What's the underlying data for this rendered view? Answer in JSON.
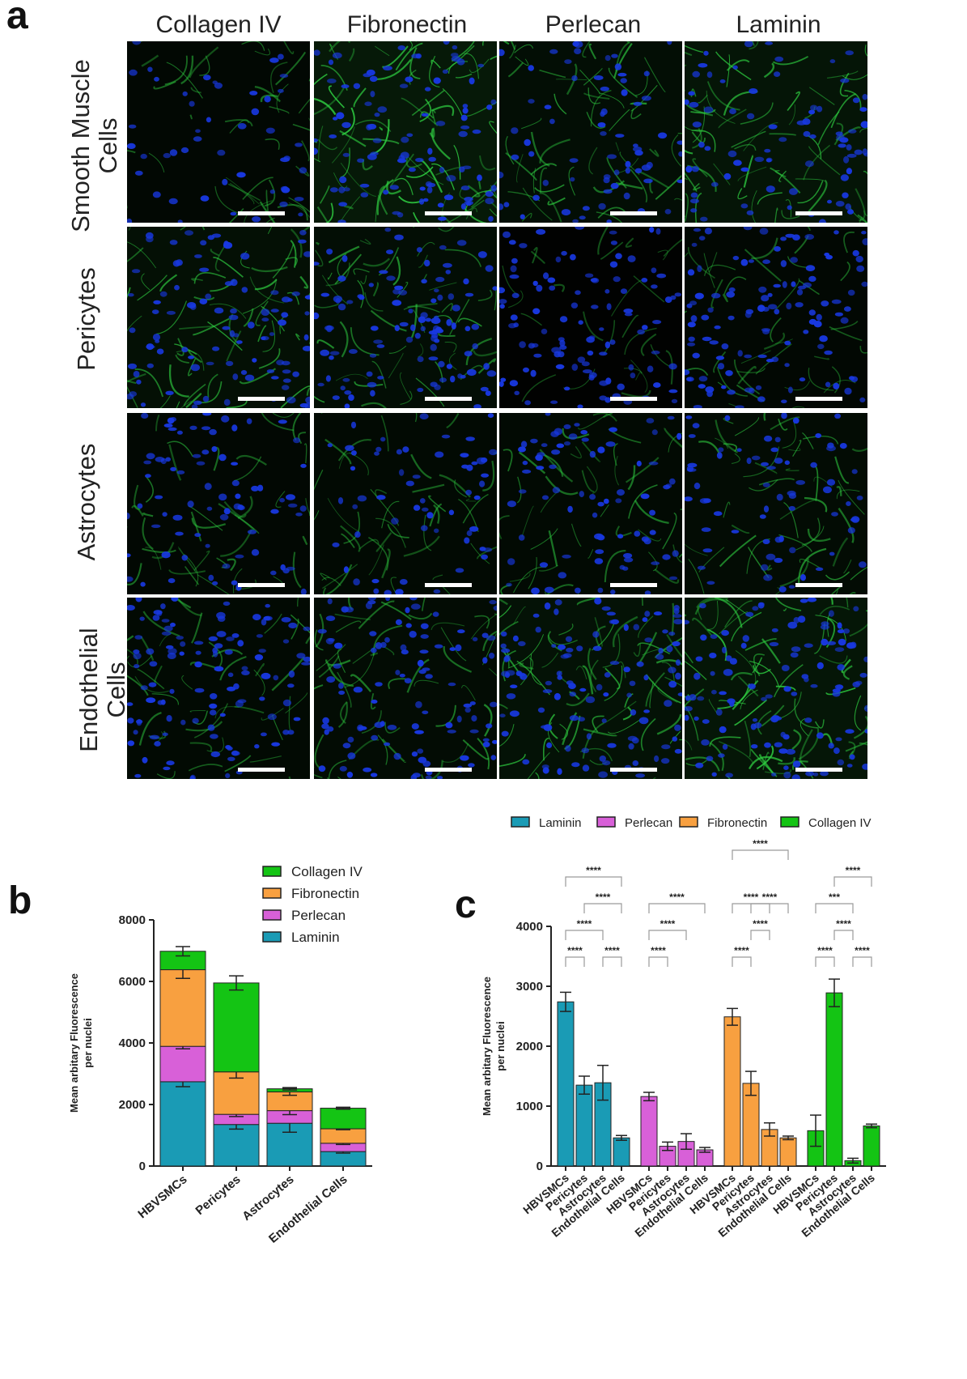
{
  "panel_a": {
    "letter": "a",
    "columns": [
      "Collagen IV",
      "Fibronectin",
      "Perlecan",
      "Laminin"
    ],
    "rows": [
      {
        "lines": [
          "Smooth Muscle",
          "Cells"
        ]
      },
      {
        "lines": [
          "Pericytes"
        ]
      },
      {
        "lines": [
          "Astrocytes"
        ]
      },
      {
        "lines": [
          "Endothelial",
          "Cells"
        ]
      }
    ]
  },
  "panel_b": {
    "letter": "b"
  },
  "panel_c": {
    "letter": "c"
  },
  "colors": {
    "laminin": "#1a9bb5",
    "perlecan": "#d860d8",
    "fibronectin": "#f8a040",
    "collagen": "#14c414",
    "stain_green": "#2ecc40",
    "stain_blue": "#1838e0"
  },
  "chart_data": [
    {
      "type": "bar",
      "stacked": true,
      "ylabel": "Mean arbitary Fluorescence per nuclei",
      "ylim": [
        0,
        8000
      ],
      "yticks": [
        "0",
        "2000",
        "4000",
        "6000",
        "8000"
      ],
      "categories": [
        "HBVSMCs",
        "Pericytes",
        "Astrocytes",
        "Endothelial Cells"
      ],
      "legend_order": [
        "Collagen IV",
        "Fibronectin",
        "Perlecan",
        "Laminin"
      ],
      "series": [
        {
          "name": "Laminin",
          "values": [
            2740,
            1350,
            1390,
            470
          ],
          "err": [
            160,
            150,
            290,
            50
          ]
        },
        {
          "name": "Perlecan",
          "values": [
            1150,
            330,
            410,
            270
          ],
          "err": [
            80,
            70,
            130,
            40
          ]
        },
        {
          "name": "Fibronectin",
          "values": [
            2490,
            1380,
            610,
            470
          ],
          "err": [
            280,
            200,
            110,
            30
          ]
        },
        {
          "name": "Collagen IV",
          "values": [
            600,
            2890,
            100,
            670
          ],
          "err": [
            150,
            230,
            40,
            30
          ]
        }
      ]
    },
    {
      "type": "bar",
      "ylabel": "Mean arbitary Fluorescence per nuclei",
      "ylim": [
        0,
        4000
      ],
      "yticks": [
        "0",
        "1000",
        "2000",
        "3000",
        "4000"
      ],
      "categories": [
        "HBVSMCs",
        "Pericytes",
        "Astrocytes",
        "Endothelial Cells"
      ],
      "legend": [
        "Laminin",
        "Perlecan",
        "Fibronectin",
        "Collagen IV"
      ],
      "groups": [
        {
          "name": "Laminin",
          "values": [
            2740,
            1350,
            1390,
            470
          ],
          "err": [
            160,
            150,
            290,
            40
          ],
          "sig": [
            {
              "from": 0,
              "to": 1,
              "label": "****",
              "level": 0
            },
            {
              "from": 2,
              "to": 3,
              "label": "****",
              "level": 0
            },
            {
              "from": 0,
              "to": 2,
              "label": "****",
              "level": 1
            },
            {
              "from": 1,
              "to": 3,
              "label": "****",
              "level": 2
            },
            {
              "from": 0,
              "to": 3,
              "label": "****",
              "level": 3
            }
          ]
        },
        {
          "name": "Perlecan",
          "values": [
            1160,
            330,
            410,
            270
          ],
          "err": [
            70,
            70,
            130,
            40
          ],
          "sig": [
            {
              "from": 0,
              "to": 1,
              "label": "****",
              "level": 0
            },
            {
              "from": 0,
              "to": 2,
              "label": "****",
              "level": 1
            },
            {
              "from": 0,
              "to": 3,
              "label": "****",
              "level": 2
            }
          ]
        },
        {
          "name": "Fibronectin",
          "values": [
            2490,
            1380,
            610,
            470
          ],
          "err": [
            140,
            200,
            110,
            30
          ],
          "sig": [
            {
              "from": 0,
              "to": 1,
              "label": "****",
              "level": 0
            },
            {
              "from": 1,
              "to": 2,
              "label": "****",
              "level": 1
            },
            {
              "from": 1,
              "to": 3,
              "label": "****",
              "level": 2
            },
            {
              "from": 0,
              "to": 2,
              "label": "****",
              "level": 2
            },
            {
              "from": 0,
              "to": 3,
              "label": "****",
              "level": 4
            }
          ]
        },
        {
          "name": "Collagen IV",
          "values": [
            590,
            2890,
            90,
            670
          ],
          "err": [
            260,
            230,
            40,
            30
          ],
          "sig": [
            {
              "from": 0,
              "to": 1,
              "label": "****",
              "level": 0
            },
            {
              "from": 2,
              "to": 3,
              "label": "****",
              "level": 0
            },
            {
              "from": 1,
              "to": 2,
              "label": "****",
              "level": 1
            },
            {
              "from": 0,
              "to": 2,
              "label": "***",
              "level": 2
            },
            {
              "from": 1,
              "to": 3,
              "label": "****",
              "level": 3
            }
          ]
        }
      ]
    }
  ]
}
